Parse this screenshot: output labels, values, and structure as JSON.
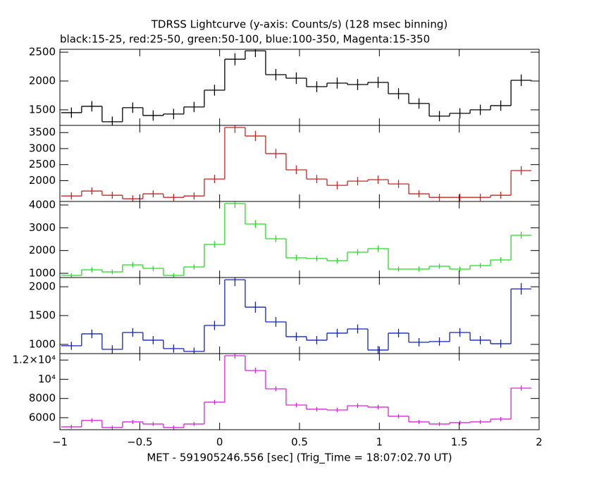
{
  "title": "TDRSS Lightcurve (y-axis: Counts/s) (128 msec binning)",
  "subtitle": "black:15-25, red:25-50, green:50-100, blue:100-350, Magenta:15-350",
  "xlabel": "MET - 591905246.556 [sec] (Trig_Time = 18:07:02.70 UT)",
  "xlim": [
    -1,
    2
  ],
  "xticks": [
    {
      "value": -1,
      "label": "−1"
    },
    {
      "value": -0.5,
      "label": "−0.5"
    },
    0,
    0.5,
    1,
    1.5,
    2
  ],
  "x": [
    -0.928,
    -0.8,
    -0.672,
    -0.544,
    -0.416,
    -0.288,
    -0.16,
    -0.032,
    0.096,
    0.224,
    0.352,
    0.48,
    0.608,
    0.736,
    0.864,
    0.992,
    1.12,
    1.248,
    1.376,
    1.504,
    1.632,
    1.76,
    1.888
  ],
  "chart_data": [
    {
      "type": "step",
      "ylim": [
        1230,
        2550
      ],
      "yticks": [
        1500,
        2000,
        2500
      ],
      "series": [
        {
          "color": "#000000",
          "values": [
            1451,
            1561,
            1293,
            1537,
            1402,
            1427,
            1549,
            1841,
            2378,
            2524,
            2110,
            2049,
            1902,
            1963,
            1939,
            1976,
            1780,
            1610,
            1390,
            1439,
            1500,
            1573,
            2012
          ],
          "errors": [
            90,
            90,
            90,
            90,
            90,
            90,
            90,
            95,
            105,
            110,
            100,
            100,
            95,
            95,
            95,
            95,
            95,
            90,
            90,
            90,
            90,
            90,
            100
          ]
        }
      ]
    },
    {
      "type": "step",
      "ylim": [
        1350,
        3725
      ],
      "yticks": [
        2000,
        2500,
        3000,
        3500
      ],
      "series": [
        {
          "color": "#cc2222",
          "values": [
            1522,
            1676,
            1544,
            1434,
            1588,
            1478,
            1522,
            2051,
            3659,
            3394,
            2844,
            2337,
            2051,
            1853,
            1985,
            2029,
            1897,
            1588,
            1478,
            1478,
            1478,
            1544,
            2315
          ],
          "errors": [
            110,
            110,
            110,
            110,
            110,
            110,
            110,
            130,
            170,
            160,
            150,
            135,
            130,
            125,
            130,
            130,
            125,
            110,
            110,
            110,
            110,
            110,
            135
          ]
        }
      ]
    },
    {
      "type": "step",
      "ylim": [
        815,
        4155
      ],
      "yticks": [
        1000,
        2000,
        3000,
        4000
      ],
      "series": [
        {
          "color": "#22dd22",
          "values": [
            907,
            1155,
            1062,
            1371,
            1216,
            907,
            1278,
            2268,
            4062,
            3165,
            2515,
            1680,
            1650,
            1557,
            1928,
            2083,
            1186,
            1186,
            1309,
            1186,
            1340,
            1588,
            2670
          ],
          "errors": [
            100,
            110,
            105,
            115,
            110,
            100,
            110,
            140,
            190,
            170,
            150,
            125,
            125,
            120,
            135,
            140,
            110,
            110,
            115,
            110,
            115,
            120,
            150
          ]
        }
      ]
    },
    {
      "type": "step",
      "ylim": [
        840,
        2160
      ],
      "yticks": [
        1000,
        1500,
        2000
      ],
      "series": [
        {
          "color": "#1122bb",
          "values": [
            976,
            1183,
            915,
            1207,
            1073,
            927,
            878,
            1329,
            2122,
            1646,
            1390,
            1134,
            1073,
            1195,
            1268,
            902,
            1195,
            1037,
            1049,
            1207,
            1073,
            1012,
            1963
          ],
          "errors": [
            70,
            75,
            70,
            75,
            72,
            70,
            68,
            80,
            110,
            95,
            85,
            75,
            72,
            75,
            78,
            70,
            75,
            72,
            72,
            75,
            72,
            70,
            100
          ]
        }
      ]
    },
    {
      "type": "step",
      "ylim": [
        4750,
        12670
      ],
      "yticks": [
        6000,
        8000,
        {
          "value": 10000,
          "label": "10⁴"
        },
        {
          "value": 12000,
          "label": "1.2×10⁴"
        }
      ],
      "series": [
        {
          "color": "#dd22dd",
          "values": [
            5047,
            5707,
            4974,
            5560,
            5340,
            4974,
            5340,
            7613,
            12450,
            10911,
            9005,
            7319,
            6880,
            6806,
            7246,
            7100,
            6147,
            5560,
            5340,
            5487,
            5560,
            5853,
            9079
          ],
          "errors": [
            200,
            210,
            200,
            210,
            205,
            200,
            205,
            240,
            310,
            290,
            270,
            240,
            235,
            235,
            240,
            240,
            220,
            210,
            205,
            210,
            210,
            215,
            270
          ]
        }
      ]
    }
  ]
}
